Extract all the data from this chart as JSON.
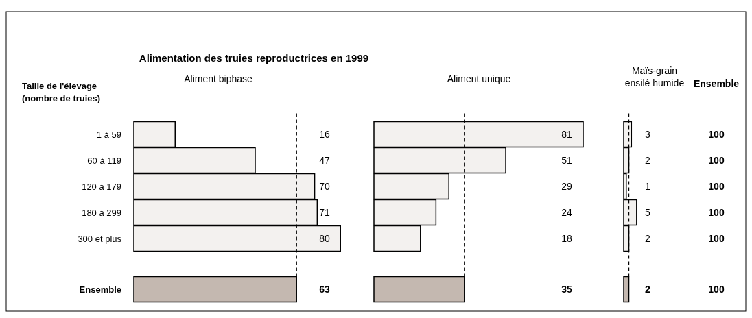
{
  "chart_data": [
    {
      "type": "bar",
      "orientation": "horizontal",
      "title": "Alimentation des truies reproductrices en 1999",
      "subtitle": "Aliment biphase",
      "ylabel": "Taille de l'élevage (nombre de truies)",
      "categories": [
        "1 à 59",
        "60 à 119",
        "120 à 179",
        "180 à 299",
        "300 et plus",
        "Ensemble"
      ],
      "values": [
        16,
        47,
        70,
        71,
        80,
        63
      ],
      "colors": [
        "#f3f1ef",
        "#f3f1ef",
        "#f3f1ef",
        "#f3f1ef",
        "#f3f1ef",
        "#c4b8b0"
      ],
      "data_labels": true,
      "ref_lines": [
        {
          "axis": "x",
          "value": 63,
          "line_style": "dashed"
        }
      ]
    },
    {
      "type": "bar",
      "orientation": "horizontal",
      "title": "Aliment unique",
      "categories": [
        null,
        null,
        null,
        null,
        null,
        null
      ],
      "values": [
        81,
        51,
        29,
        24,
        18,
        35
      ],
      "colors": [
        "#f3f1ef",
        "#f3f1ef",
        "#f3f1ef",
        "#f3f1ef",
        "#f3f1ef",
        "#c4b8b0"
      ],
      "data_labels": true,
      "ref_lines": [
        {
          "axis": "x",
          "value": 35,
          "line_style": "dashed"
        }
      ]
    },
    {
      "type": "bar",
      "orientation": "horizontal",
      "title": "Maïs-grain ensilé humide",
      "categories": [
        null,
        null,
        null,
        null,
        null,
        null
      ],
      "values": [
        3,
        2,
        1,
        5,
        2,
        2
      ],
      "colors": [
        "#f3f1ef",
        "#f3f1ef",
        "#f3f1ef",
        "#f3f1ef",
        "#f3f1ef",
        "#c4b8b0"
      ],
      "data_labels": true,
      "ref_lines": [
        {
          "axis": "x",
          "value": 2,
          "line_style": "dashed"
        }
      ]
    },
    {
      "type": "other",
      "title": "Ensemble",
      "annotations": [
        "100",
        "100",
        "100",
        "100",
        "100",
        "100"
      ]
    }
  ]
}
